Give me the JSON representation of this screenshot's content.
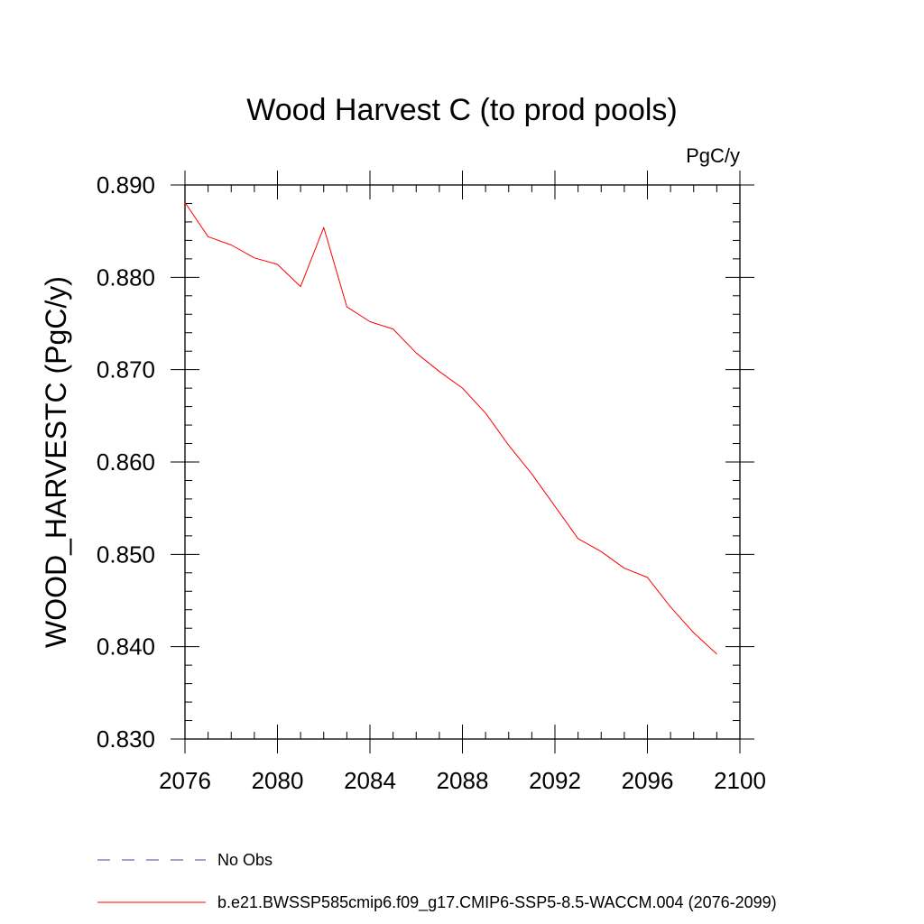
{
  "chart_data": {
    "type": "line",
    "title": "Wood Harvest C (to prod pools)",
    "units_label": "PgC/y",
    "ylabel": "WOOD_HARVESTC  (PgC/y)",
    "xlabel": "",
    "xlim": [
      2076,
      2100
    ],
    "ylim": [
      0.83,
      0.89
    ],
    "x_ticks": [
      2076,
      2080,
      2084,
      2088,
      2092,
      2096,
      2100
    ],
    "x_tick_labels": [
      "2076",
      "2080",
      "2084",
      "2088",
      "2092",
      "2096",
      "2100"
    ],
    "y_ticks": [
      0.83,
      0.84,
      0.85,
      0.86,
      0.87,
      0.88,
      0.89
    ],
    "y_tick_labels": [
      "0.830",
      "0.840",
      "0.850",
      "0.860",
      "0.870",
      "0.880",
      "0.890"
    ],
    "grid": false,
    "legend_position": "bottom",
    "series": [
      {
        "name": "b.e21.BWSSP585cmip6.f09_g17.CMIP6-SSP5-8.5-WACCM.004 (2076-2099)",
        "color": "#ff0000",
        "style": "solid",
        "x": [
          2076,
          2077,
          2078,
          2079,
          2080,
          2081,
          2082,
          2083,
          2084,
          2085,
          2086,
          2087,
          2088,
          2089,
          2090,
          2091,
          2092,
          2093,
          2094,
          2095,
          2096,
          2097,
          2098,
          2099
        ],
        "y": [
          0.8881,
          0.8844,
          0.8835,
          0.8821,
          0.8814,
          0.879,
          0.8854,
          0.8768,
          0.8752,
          0.8744,
          0.8718,
          0.8698,
          0.868,
          0.8653,
          0.8618,
          0.8587,
          0.8552,
          0.8517,
          0.8503,
          0.8485,
          0.8475,
          0.8443,
          0.8415,
          0.8392
        ]
      }
    ],
    "legend": [
      {
        "label": "No Obs",
        "color": "#4b3ca0",
        "style": "dashed"
      },
      {
        "label": "b.e21.BWSSP585cmip6.f09_g17.CMIP6-SSP5-8.5-WACCM.004 (2076-2099)",
        "color": "#ff0000",
        "style": "solid"
      }
    ]
  }
}
